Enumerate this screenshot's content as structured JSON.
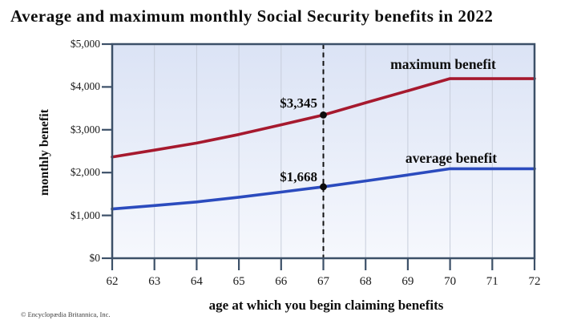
{
  "title": "Average and maximum monthly Social Security benefits in 2022",
  "footer": {
    "copyright": "© Encyclopædia Britannica, Inc."
  },
  "colors": {
    "maximum_line": "#A6192E",
    "average_line": "#2B4BBE",
    "axis_border": "#3C5068",
    "gridline": "#C7CDDB",
    "plot_bg_top": "#DBE3F5",
    "plot_bg_bottom": "#F6F8FD",
    "reference_line": "#111111",
    "dot": "#0d0d0d"
  },
  "chart_data": {
    "type": "line",
    "title": "Average and maximum monthly Social Security benefits in 2022",
    "xlabel": "age at which you begin claiming benefits",
    "ylabel": "monthly benefit",
    "x": [
      62,
      63,
      64,
      65,
      66,
      67,
      68,
      69,
      70,
      71,
      72
    ],
    "xtick_labels": [
      "62",
      "63",
      "64",
      "65",
      "66",
      "67",
      "68",
      "69",
      "70",
      "71",
      "72"
    ],
    "ytick_values": [
      0,
      1000,
      2000,
      3000,
      4000,
      5000
    ],
    "ytick_labels": [
      "$0",
      "$1,000",
      "$2,000",
      "$3,000",
      "$4,000",
      "$5,000"
    ],
    "xlim": [
      62,
      72
    ],
    "ylim": [
      0,
      5000
    ],
    "grid": "vertical-only",
    "legend_position": "inline-labels",
    "series": [
      {
        "name": "maximum benefit",
        "color": "#A6192E",
        "values": [
          2364,
          2525,
          2690,
          2890,
          3115,
          3345,
          3630,
          3910,
          4194,
          4194,
          4194
        ]
      },
      {
        "name": "average benefit",
        "color": "#2B4BBE",
        "values": [
          1150,
          1230,
          1315,
          1425,
          1545,
          1668,
          1805,
          1945,
          2090,
          2090,
          2090
        ]
      }
    ],
    "reference_line_x": 67,
    "annotations": [
      {
        "label": "$3,345",
        "x": 67,
        "y": 3345,
        "series": "maximum benefit"
      },
      {
        "label": "$1,668",
        "x": 67,
        "y": 1668,
        "series": "average benefit"
      }
    ]
  }
}
